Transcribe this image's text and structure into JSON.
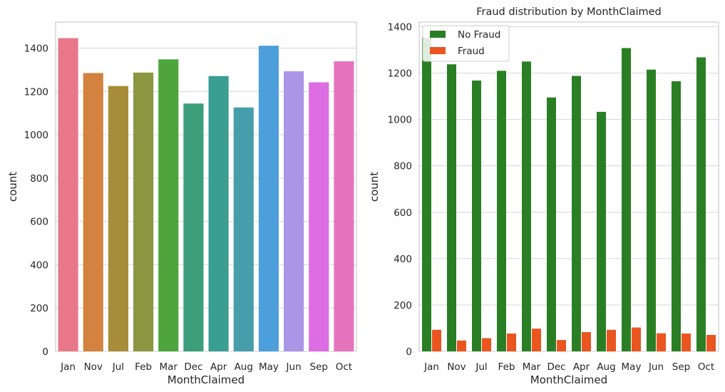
{
  "chart_data": [
    {
      "type": "bar",
      "title": "",
      "xlabel": "MonthClaimed",
      "ylabel": "count",
      "categories": [
        "Jan",
        "Nov",
        "Jul",
        "Feb",
        "Mar",
        "Dec",
        "Apr",
        "Aug",
        "May",
        "Jun",
        "Sep",
        "Oct"
      ],
      "values": [
        1446,
        1285,
        1225,
        1287,
        1348,
        1144,
        1271,
        1126,
        1411,
        1293,
        1242,
        1339
      ],
      "colors": [
        "#e8778a",
        "#d3823f",
        "#a78c3a",
        "#8a9640",
        "#4ea53c",
        "#3c9e7a",
        "#3a9e92",
        "#459ea9",
        "#4d9fdb",
        "#a996e6",
        "#dd6de3",
        "#e574be"
      ],
      "ylim": [
        0,
        1520
      ],
      "yticks": [
        0,
        200,
        400,
        600,
        800,
        1000,
        1200,
        1400
      ],
      "grid": "horizontal"
    },
    {
      "type": "bar",
      "title": "Fraud distribution by MonthClaimed",
      "xlabel": "MonthClaimed",
      "ylabel": "count",
      "categories": [
        "Jan",
        "Nov",
        "Jul",
        "Feb",
        "Mar",
        "Dec",
        "Apr",
        "Aug",
        "May",
        "Jun",
        "Sep",
        "Oct"
      ],
      "series": [
        {
          "name": "No Fraud",
          "color": "#2a7f24",
          "values": [
            1353,
            1238,
            1168,
            1210,
            1250,
            1095,
            1188,
            1033,
            1308,
            1215,
            1165,
            1268
          ]
        },
        {
          "name": "Fraud",
          "color": "#ea5520",
          "values": [
            93,
            47,
            57,
            77,
            98,
            49,
            83,
            93,
            103,
            78,
            77,
            71
          ]
        }
      ],
      "ylim": [
        0,
        1420
      ],
      "yticks": [
        0,
        200,
        400,
        600,
        800,
        1000,
        1200,
        1400
      ],
      "grid": "horizontal",
      "legend": "top-left"
    }
  ]
}
